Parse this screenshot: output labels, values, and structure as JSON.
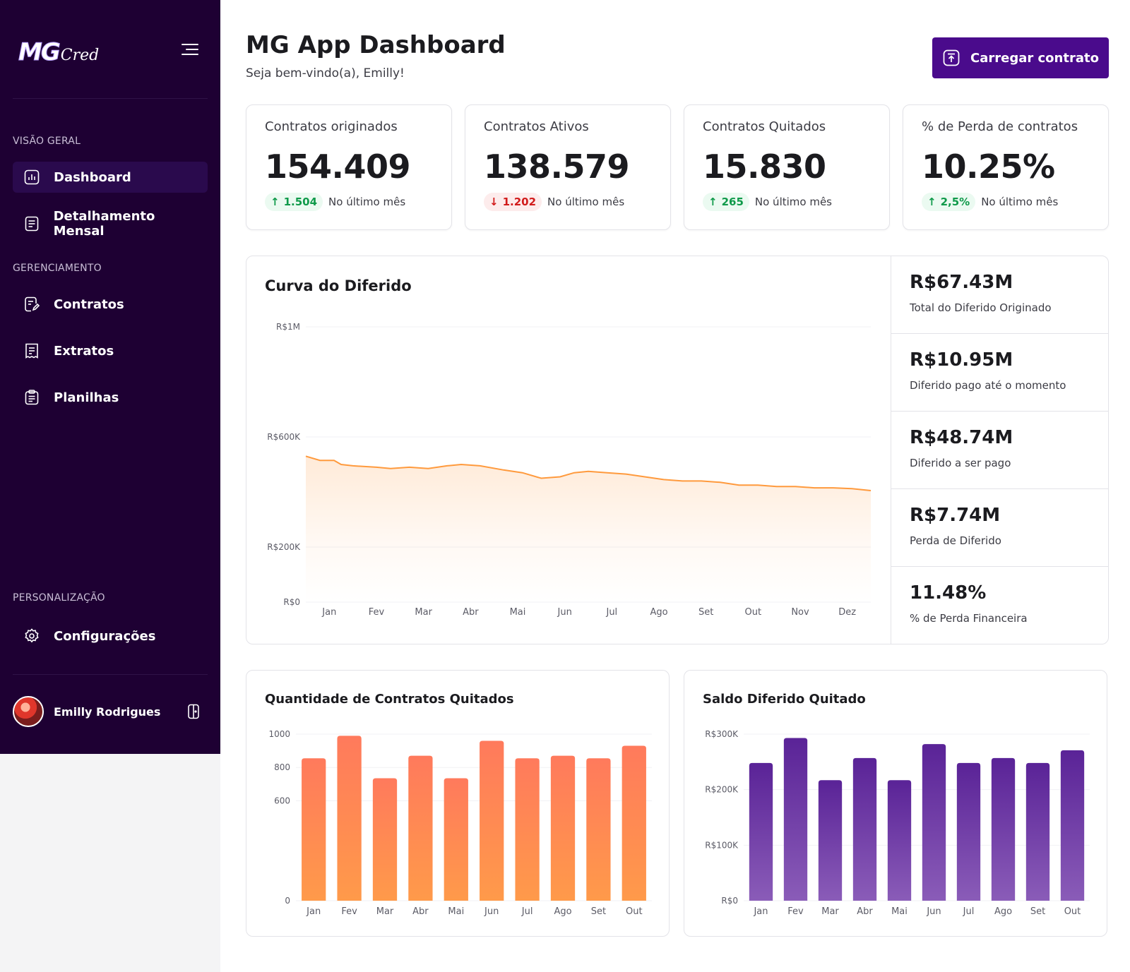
{
  "sidebar": {
    "logo_main": "MG",
    "logo_sub": "Cred",
    "sections": {
      "overview": "VISÃO GERAL",
      "management": "GERENCIAMENTO",
      "personalization": "PERSONALIZAÇÃO"
    },
    "items": {
      "dashboard": "Dashboard",
      "monthly": "Detalhamento Mensal",
      "contracts": "Contratos",
      "statements": "Extratos",
      "spreadsheets": "Planilhas",
      "settings": "Configurações"
    },
    "user_name": "Emilly Rodrigues"
  },
  "header": {
    "title": "MG App Dashboard",
    "subtitle": "Seja bem-vindo(a), Emilly!",
    "upload_label": "Carregar contrato"
  },
  "stats": [
    {
      "title": "Contratos originados",
      "value": "154.409",
      "change": "1.504",
      "direction": "up",
      "note": "No último mês"
    },
    {
      "title": "Contratos Ativos",
      "value": "138.579",
      "change": "1.202",
      "direction": "down",
      "note": "No último mês"
    },
    {
      "title": "Contratos Quitados",
      "value": "15.830",
      "change": "265",
      "direction": "up",
      "note": "No último mês"
    },
    {
      "title": "% de Perda de contratos",
      "value": "10.25%",
      "change": "2,5%",
      "direction": "up",
      "note": "No último mês"
    }
  ],
  "deferred": {
    "title": "Curva do Diferido",
    "metrics": [
      {
        "value": "R$67.43M",
        "label": "Total do Diferido Originado"
      },
      {
        "value": "R$10.95M",
        "label": "Diferido pago até o momento"
      },
      {
        "value": "R$48.74M",
        "label": "Diferido a ser pago"
      },
      {
        "value": "R$7.74M",
        "label": "Perda de Diferido"
      },
      {
        "value": "11.48%",
        "label": "% de Perda Financeira"
      }
    ]
  },
  "settled_count": {
    "title": "Quantidade de Contratos Quitados"
  },
  "settled_balance": {
    "title": "Saldo Diferido Quitado"
  },
  "colors": {
    "sidebar_bg": "#1e0033",
    "accent": "#4a0b8c",
    "line": "#ff9a3d",
    "orange_bar_top": "#ff7a5c",
    "orange_bar_bottom": "#ff9a4a",
    "purple_bar_top": "#5a2397",
    "purple_bar_bottom": "#8a5cb8",
    "up": "#0f9a4a",
    "down": "#d11b1b"
  },
  "chart_data": [
    {
      "type": "area",
      "title": "Curva do Diferido",
      "categories": [
        "Jan",
        "Fev",
        "Mar",
        "Abr",
        "Mai",
        "Jun",
        "Jul",
        "Ago",
        "Set",
        "Out",
        "Nov",
        "Dez"
      ],
      "y_ticks": [
        {
          "value": 0,
          "label": "R$0"
        },
        {
          "value": 200000,
          "label": "R$200K"
        },
        {
          "value": 600000,
          "label": "R$600K"
        },
        {
          "value": 1000000,
          "label": "R$1M"
        }
      ],
      "ylim": [
        0,
        1000000
      ],
      "x_range": [
        0,
        12
      ],
      "grid": true,
      "series": [
        {
          "x": [
            0,
            0.3,
            0.6,
            0.75,
            1.0,
            1.5,
            1.8,
            2.2,
            2.6,
            3.0,
            3.3,
            3.7,
            4.2,
            4.6,
            5.0,
            5.4,
            5.7,
            6.0,
            6.4,
            6.8,
            7.2,
            7.6,
            8.0,
            8.4,
            8.8,
            9.2,
            9.6,
            10.0,
            10.4,
            10.8,
            11.2,
            11.6,
            12.0
          ],
          "values": [
            530000,
            515000,
            515000,
            500000,
            495000,
            490000,
            485000,
            490000,
            485000,
            495000,
            500000,
            495000,
            480000,
            470000,
            450000,
            455000,
            470000,
            475000,
            470000,
            465000,
            455000,
            445000,
            440000,
            440000,
            435000,
            425000,
            425000,
            420000,
            420000,
            415000,
            415000,
            412000,
            405000
          ]
        }
      ]
    },
    {
      "type": "bar",
      "title": "Quantidade de Contratos Quitados",
      "categories": [
        "Jan",
        "Fev",
        "Mar",
        "Abr",
        "Mai",
        "Jun",
        "Jul",
        "Ago",
        "Set",
        "Out"
      ],
      "values": [
        855,
        990,
        735,
        870,
        735,
        960,
        855,
        870,
        855,
        930
      ],
      "y_ticks": [
        {
          "value": 0,
          "label": "0"
        },
        {
          "value": 600,
          "label": "600"
        },
        {
          "value": 800,
          "label": "800"
        },
        {
          "value": 1000,
          "label": "1000"
        }
      ],
      "ylim": [
        0,
        1000
      ],
      "grid": true
    },
    {
      "type": "bar",
      "title": "Saldo Diferido Quitado",
      "categories": [
        "Jan",
        "Fev",
        "Mar",
        "Abr",
        "Mai",
        "Jun",
        "Jul",
        "Ago",
        "Set",
        "Out"
      ],
      "values": [
        248000,
        293000,
        217000,
        257000,
        217000,
        282000,
        248000,
        257000,
        248000,
        271000
      ],
      "y_ticks": [
        {
          "value": 0,
          "label": "R$0"
        },
        {
          "value": 100000,
          "label": "R$100K"
        },
        {
          "value": 200000,
          "label": "R$200K"
        },
        {
          "value": 300000,
          "label": "R$300K"
        }
      ],
      "ylim": [
        0,
        300000
      ],
      "grid": true
    }
  ]
}
